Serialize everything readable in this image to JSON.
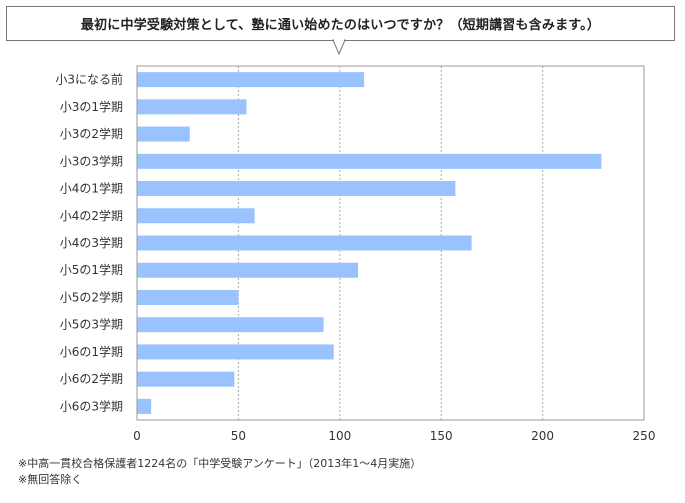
{
  "notes": [
    "※中高一貫校合格保護者1224名の「中学受験アンケート」（2013年1～4月実施）",
    "※無回答除く"
  ],
  "colors": {
    "bar": "#99c2ff",
    "frame": "#999999",
    "grid": "#aaaaaa"
  },
  "chart_data": {
    "type": "bar",
    "orientation": "horizontal",
    "title": "最初に中学受験対策として、塾に通い始めたのはいつですか？（短期講習も含みます。）",
    "categories": [
      "小3になる前",
      "小3の1学期",
      "小3の2学期",
      "小3の3学期",
      "小4の1学期",
      "小4の2学期",
      "小4の3学期",
      "小5の1学期",
      "小5の2学期",
      "小5の3学期",
      "小6の1学期",
      "小6の2学期",
      "小6の3学期"
    ],
    "values": [
      112,
      54,
      26,
      229,
      157,
      58,
      165,
      109,
      50,
      92,
      97,
      48,
      7
    ],
    "xlim": [
      0,
      250
    ],
    "xticks": [
      0,
      50,
      100,
      150,
      200,
      250
    ],
    "grid": true,
    "legend": "none"
  }
}
